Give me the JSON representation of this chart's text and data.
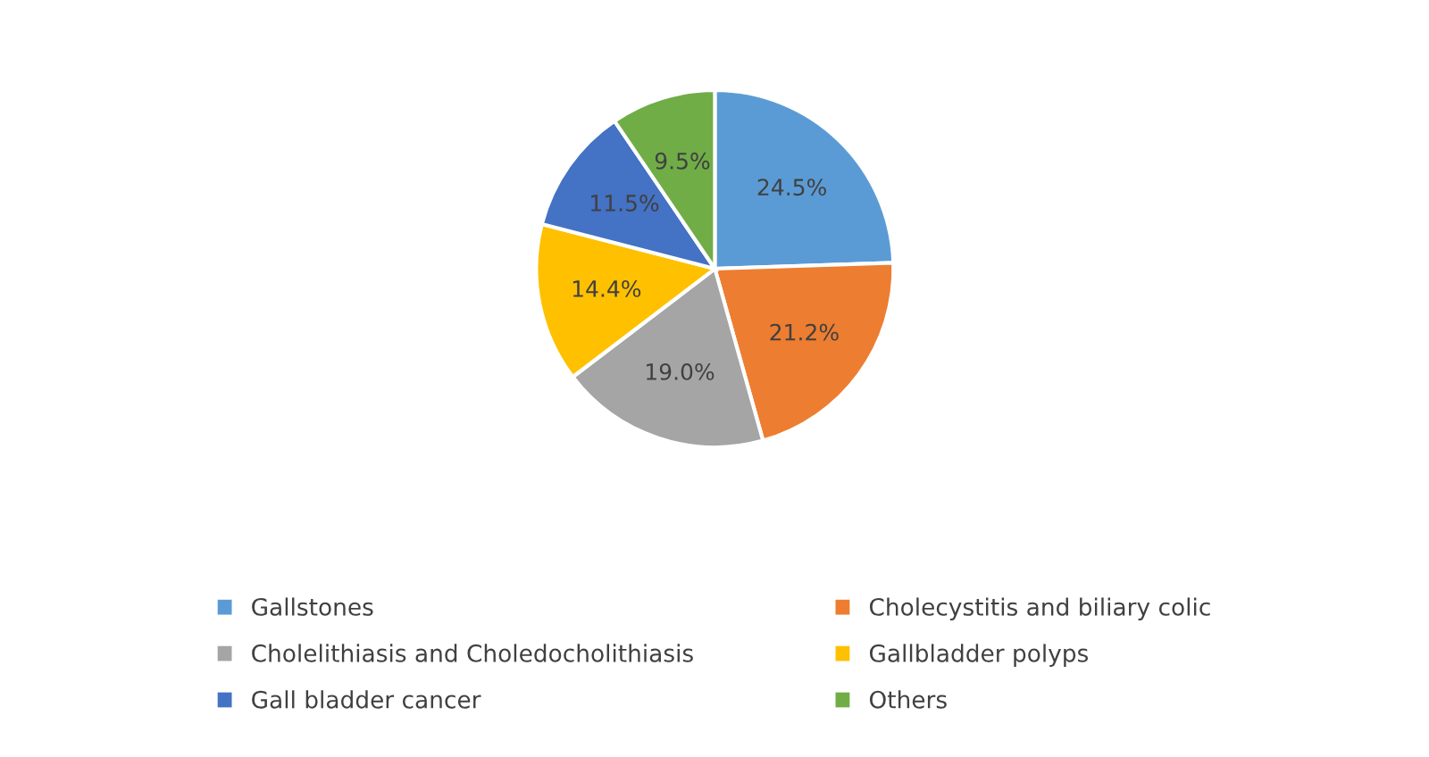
{
  "chart_data": {
    "type": "pie",
    "categories": [
      "Gallstones",
      "Cholecystitis and biliary colic",
      "Cholelithiasis and Choledocholithiasis",
      "Gallbladder polyps",
      "Gall bladder cancer",
      "Others"
    ],
    "values": [
      24.5,
      21.2,
      19.0,
      14.4,
      11.5,
      9.5
    ],
    "value_labels": [
      "24.5%",
      "21.2%",
      "19.0%",
      "14.4%",
      "11.5%",
      "9.5%"
    ],
    "colors": [
      "#5b9bd5",
      "#ed7d31",
      "#a5a5a5",
      "#ffc000",
      "#4472c4",
      "#70ad47"
    ],
    "legend": "bottom"
  }
}
